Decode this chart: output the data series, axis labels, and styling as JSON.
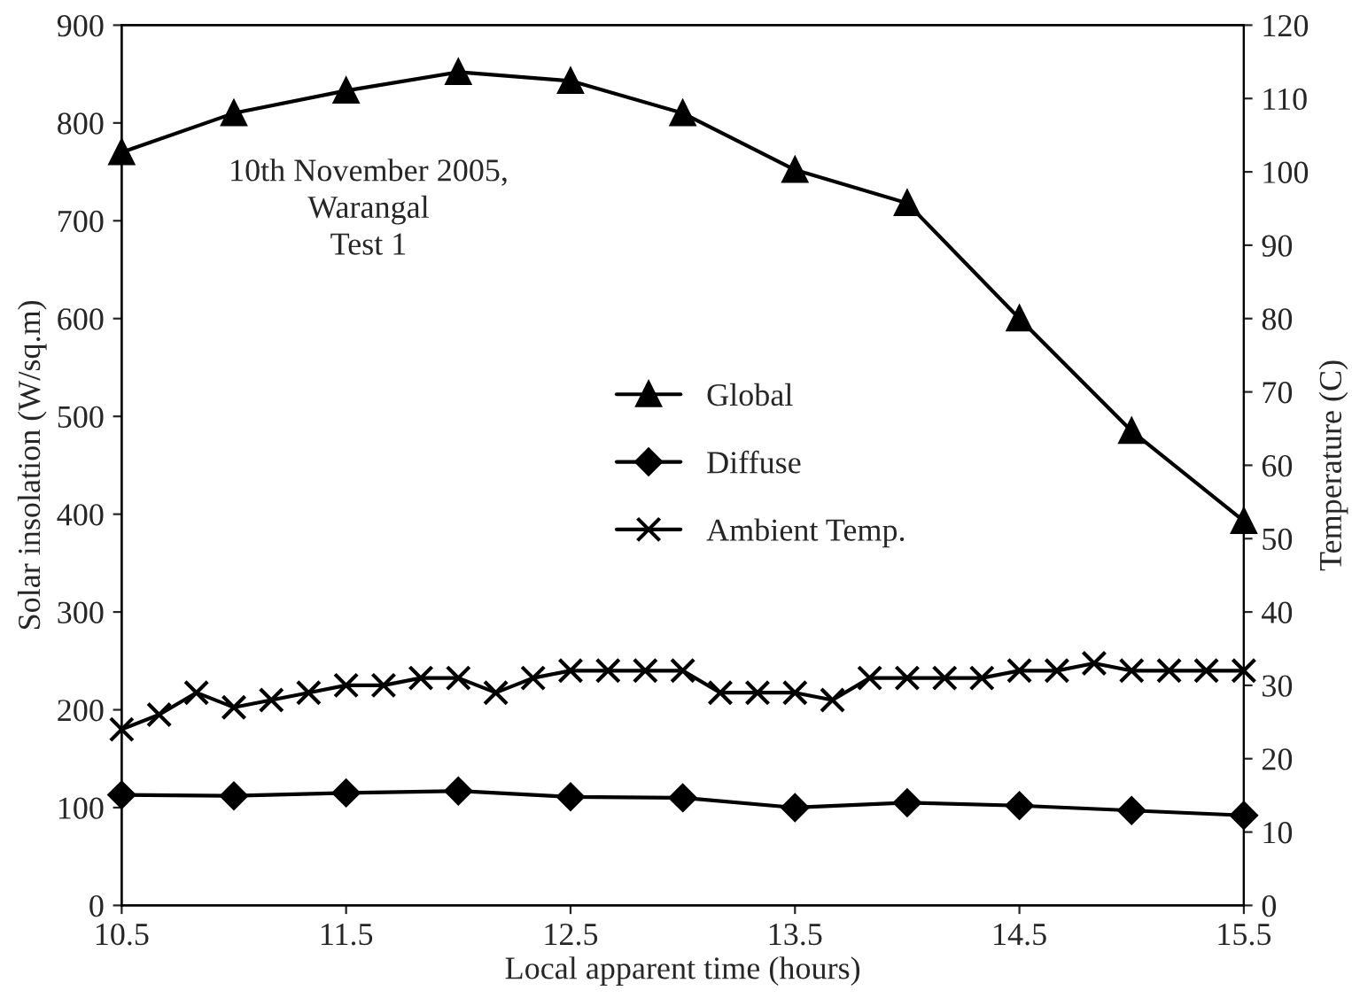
{
  "chart_data": {
    "type": "line",
    "xlabel": "Local apparent time (hours)",
    "ylabel": "Solar insolation (W/sq.m)",
    "y2label": "Temperature (C)",
    "annotations": [
      "10th November 2005,\nWarangal\nTest 1"
    ],
    "xlim": [
      10.5,
      15.5
    ],
    "xticks": [
      10.5,
      11.5,
      12.5,
      13.5,
      14.5,
      15.5
    ],
    "ylim": [
      0,
      900
    ],
    "yticks": [
      0,
      100,
      200,
      300,
      400,
      500,
      600,
      700,
      800,
      900
    ],
    "y2lim": [
      0,
      120
    ],
    "y2ticks": [
      0,
      10,
      20,
      30,
      40,
      50,
      60,
      70,
      80,
      90,
      100,
      110,
      120
    ],
    "grid": false,
    "legend": "center",
    "series": [
      {
        "name": "Global",
        "color": "#000000",
        "marker": "triangle",
        "x": [
          10.5,
          11,
          11.5,
          12,
          12.5,
          13,
          13.5,
          14,
          14.5,
          15,
          15.5
        ],
        "values": [
          770,
          810,
          833,
          852,
          843,
          810,
          752,
          718,
          600,
          485,
          393
        ]
      },
      {
        "name": "Diffuse",
        "color": "#000000",
        "marker": "diamond",
        "x": [
          10.5,
          11,
          11.5,
          12,
          12.5,
          13,
          13.5,
          14,
          14.5,
          15,
          15.5
        ],
        "values": [
          113,
          112,
          115,
          117,
          111,
          110,
          100,
          105,
          102,
          97,
          92
        ]
      },
      {
        "name": "Ambient Temp.",
        "color": "#000000",
        "marker": "cross",
        "axis": "y2",
        "x": [
          10.5,
          10.667,
          10.833,
          11,
          11.167,
          11.333,
          11.5,
          11.667,
          11.833,
          12,
          12.167,
          12.333,
          12.5,
          12.667,
          12.833,
          13,
          13.167,
          13.333,
          13.5,
          13.667,
          13.833,
          14,
          14.167,
          14.333,
          14.5,
          14.667,
          14.833,
          15,
          15.167,
          15.333,
          15.5
        ],
        "values": [
          24,
          26,
          29,
          27,
          28,
          29,
          30,
          30,
          31,
          31,
          29,
          31,
          32,
          32,
          32,
          32,
          29,
          29,
          29,
          28,
          31,
          31,
          31,
          31,
          32,
          32,
          33,
          32,
          32,
          32,
          32
        ]
      }
    ]
  }
}
